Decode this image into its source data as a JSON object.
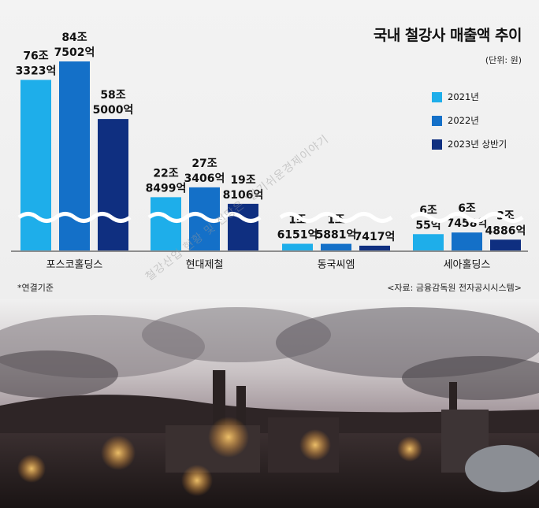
{
  "chart_data": {
    "type": "bar",
    "title": "국내 철강사 매출액 추이",
    "unit": "(단위: 원)",
    "categories": [
      "포스코홀딩스",
      "현대제철",
      "동국씨엠",
      "세아홀딩스"
    ],
    "series": [
      {
        "name": "2021년",
        "color": "#1eaeea",
        "values": [
          763323,
          228499,
          16151,
          60055
        ],
        "labels": [
          [
            "76조",
            "3323억"
          ],
          [
            "22조",
            "8499억"
          ],
          [
            "1조",
            "6151억"
          ],
          [
            "6조",
            "55억"
          ]
        ]
      },
      {
        "name": "2022년",
        "color": "#1470c8",
        "values": [
          847502,
          273406,
          15881,
          67458
        ],
        "labels": [
          [
            "84조",
            "7502억"
          ],
          [
            "27조",
            "3406억"
          ],
          [
            "1조",
            "5881억"
          ],
          [
            "6조",
            "7458억"
          ]
        ]
      },
      {
        "name": "2023년 상반기",
        "color": "#0f2f80",
        "values": [
          585000,
          198106,
          7417,
          34886
        ],
        "labels": [
          [
            "58조",
            "5000억"
          ],
          [
            "19조",
            "8106억"
          ],
          [
            "",
            "7417억"
          ],
          [
            "3조",
            "4886억"
          ]
        ]
      }
    ],
    "ylim": [
      0,
      900000
    ],
    "legend_position": "right",
    "axis_break": true
  },
  "footnote": "*연결기준",
  "source": "<자료: 금융감독원 전자공시시스템>",
  "watermark": "철강산업 현황 및 전망은 '알기쉬운경제이야기"
}
